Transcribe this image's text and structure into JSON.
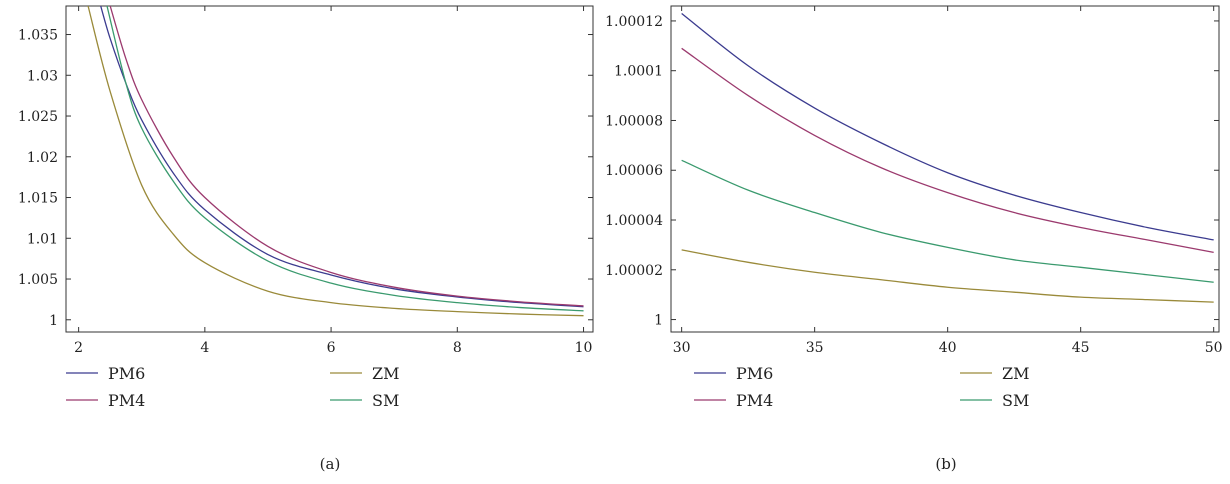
{
  "chart_data": [
    {
      "type": "line",
      "caption": "(a)",
      "xlim": [
        1.8,
        10.15
      ],
      "ylim": [
        0.9985,
        1.0385
      ],
      "xticks": [
        2,
        4,
        6,
        8,
        10
      ],
      "xtick_labels": [
        "2",
        "4",
        "6",
        "8",
        "10"
      ],
      "yticks": [
        1,
        1.005,
        1.01,
        1.015,
        1.02,
        1.025,
        1.03,
        1.035
      ],
      "ytick_labels": [
        "1",
        "1.005",
        "1.01",
        "1.015",
        "1.02",
        "1.025",
        "1.03",
        "1.035"
      ],
      "grid": false,
      "legend_position": "bottom",
      "series": [
        {
          "name": "PM6",
          "color": "#3b3b8f",
          "x": [
            2.35,
            2.5,
            2.75,
            3,
            3.5,
            4,
            5,
            6,
            7,
            8,
            9,
            10
          ],
          "values": [
            1.0385,
            1.0345,
            1.029,
            1.0245,
            1.018,
            1.0135,
            1.008,
            1.0055,
            1.0038,
            1.0028,
            1.0021,
            1.0016
          ]
        },
        {
          "name": "PM4",
          "color": "#9b3a6e",
          "x": [
            2.5,
            2.75,
            3,
            3.5,
            4,
            5,
            6,
            7,
            8,
            9,
            10
          ],
          "values": [
            1.0385,
            1.032,
            1.027,
            1.02,
            1.015,
            1.009,
            1.0058,
            1.004,
            1.0029,
            1.0022,
            1.0017
          ]
        },
        {
          "name": "ZM",
          "color": "#9a8a3a",
          "x": [
            2.15,
            2.5,
            3,
            3.5,
            4,
            5,
            6,
            7,
            8,
            9,
            10
          ],
          "values": [
            1.0385,
            1.028,
            1.0165,
            1.0105,
            1.007,
            1.0035,
            1.0021,
            1.0014,
            1.001,
            1.0007,
            1.0005
          ]
        },
        {
          "name": "SM",
          "color": "#3a9a6e",
          "x": [
            2.45,
            2.75,
            3,
            3.5,
            4,
            5,
            6,
            7,
            8,
            9,
            10
          ],
          "values": [
            1.0385,
            1.029,
            1.0235,
            1.017,
            1.0125,
            1.0072,
            1.0045,
            1.003,
            1.0021,
            1.0015,
            1.0011
          ]
        }
      ]
    },
    {
      "type": "line",
      "caption": "(b)",
      "xlim": [
        29.6,
        50.2
      ],
      "ylim": [
        0.999995,
        1.000126
      ],
      "xticks": [
        30,
        35,
        40,
        45,
        50
      ],
      "xtick_labels": [
        "30",
        "35",
        "40",
        "45",
        "50"
      ],
      "yticks": [
        1,
        1.00002,
        1.00004,
        1.00006,
        1.00008,
        1.0001,
        1.00012
      ],
      "ytick_labels": [
        "1",
        "1.00002",
        "1.00004",
        "1.00006",
        "1.00008",
        "1.0001",
        "1.00012"
      ],
      "grid": false,
      "legend_position": "bottom",
      "series": [
        {
          "name": "PM6",
          "color": "#3b3b8f",
          "x": [
            30,
            32.5,
            35,
            37.5,
            40,
            42.5,
            45,
            47.5,
            50
          ],
          "values": [
            1.000123,
            1.000102,
            1.000085,
            1.000071,
            1.000059,
            1.00005,
            1.000043,
            1.000037,
            1.000032
          ]
        },
        {
          "name": "PM4",
          "color": "#9b3a6e",
          "x": [
            30,
            32.5,
            35,
            37.5,
            40,
            42.5,
            45,
            47.5,
            50
          ],
          "values": [
            1.000109,
            1.00009,
            1.000074,
            1.000061,
            1.000051,
            1.000043,
            1.000037,
            1.000032,
            1.000027
          ]
        },
        {
          "name": "ZM",
          "color": "#9a8a3a",
          "x": [
            30,
            32.5,
            35,
            37.5,
            40,
            42.5,
            45,
            47.5,
            50
          ],
          "values": [
            1.000028,
            1.000023,
            1.000019,
            1.000016,
            1.000013,
            1.000011,
            1.000009,
            1.000008,
            1.000007
          ]
        },
        {
          "name": "SM",
          "color": "#3a9a6e",
          "x": [
            30,
            32.5,
            35,
            37.5,
            40,
            42.5,
            45,
            47.5,
            50
          ],
          "values": [
            1.000064,
            1.000052,
            1.000043,
            1.000035,
            1.000029,
            1.000024,
            1.000021,
            1.000018,
            1.000015
          ]
        }
      ]
    }
  ]
}
